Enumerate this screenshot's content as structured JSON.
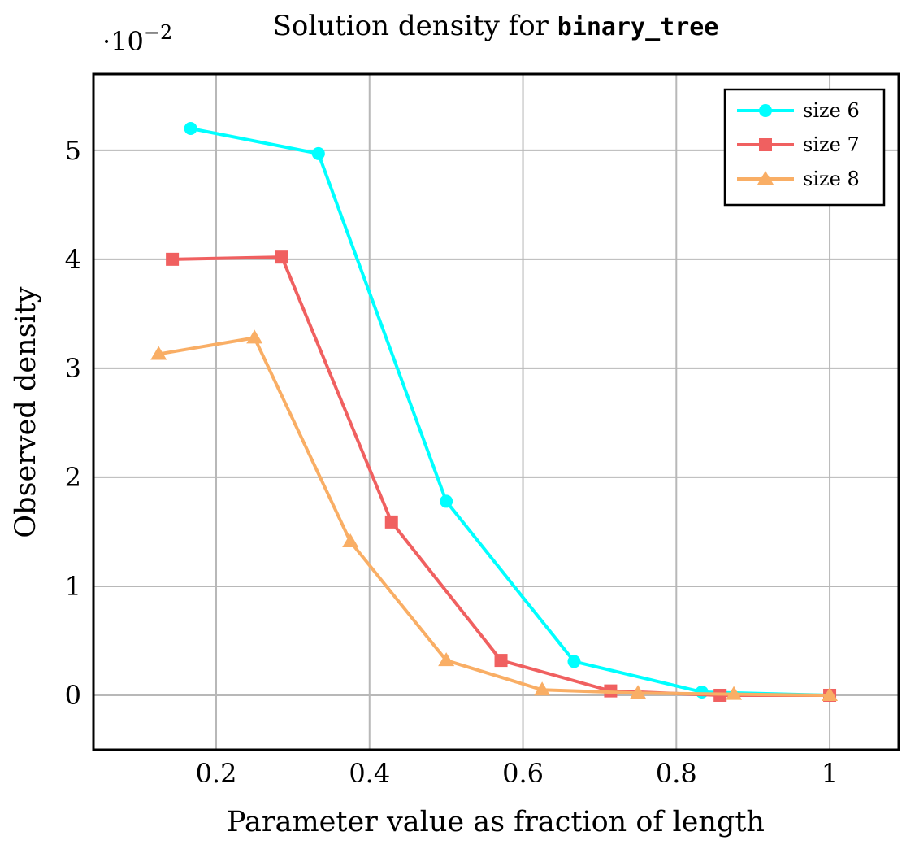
{
  "chart_data": {
    "type": "line",
    "title": {
      "text": "Solution density for ",
      "code": "binary_tree"
    },
    "xlabel": "Parameter value as fraction of length",
    "ylabel": "Observed density",
    "scale_label": {
      "base": "·10",
      "exponent": "−2"
    },
    "xlim": [
      0.04,
      1.09
    ],
    "ylim": [
      -0.5,
      5.7
    ],
    "xticks": [
      0.2,
      0.4,
      0.6,
      0.8,
      1
    ],
    "xtick_labels": [
      "0.2",
      "0.4",
      "0.6",
      "0.8",
      "1"
    ],
    "yticks": [
      0,
      1,
      2,
      3,
      4,
      5
    ],
    "ytick_labels": [
      "0",
      "1",
      "2",
      "3",
      "4",
      "5"
    ],
    "grid": true,
    "legend_position": "top-right",
    "series": [
      {
        "name": "size 6",
        "color": "#00ffff",
        "marker": "circle",
        "x": [
          0.1667,
          0.3333,
          0.5,
          0.6667,
          0.8333,
          1.0
        ],
        "y": [
          5.2,
          4.97,
          1.78,
          0.31,
          0.03,
          0.0
        ]
      },
      {
        "name": "size 7",
        "color": "#f06060",
        "marker": "square",
        "x": [
          0.1429,
          0.2857,
          0.4286,
          0.5714,
          0.7143,
          0.8571,
          1.0
        ],
        "y": [
          4.0,
          4.02,
          1.59,
          0.32,
          0.04,
          0.0,
          0.0
        ]
      },
      {
        "name": "size 8",
        "color": "#f9ae65",
        "marker": "triangle",
        "x": [
          0.125,
          0.25,
          0.375,
          0.5,
          0.625,
          0.75,
          0.875,
          1.0
        ],
        "y": [
          3.13,
          3.28,
          1.41,
          0.32,
          0.05,
          0.02,
          0.01,
          0.0
        ]
      }
    ]
  }
}
